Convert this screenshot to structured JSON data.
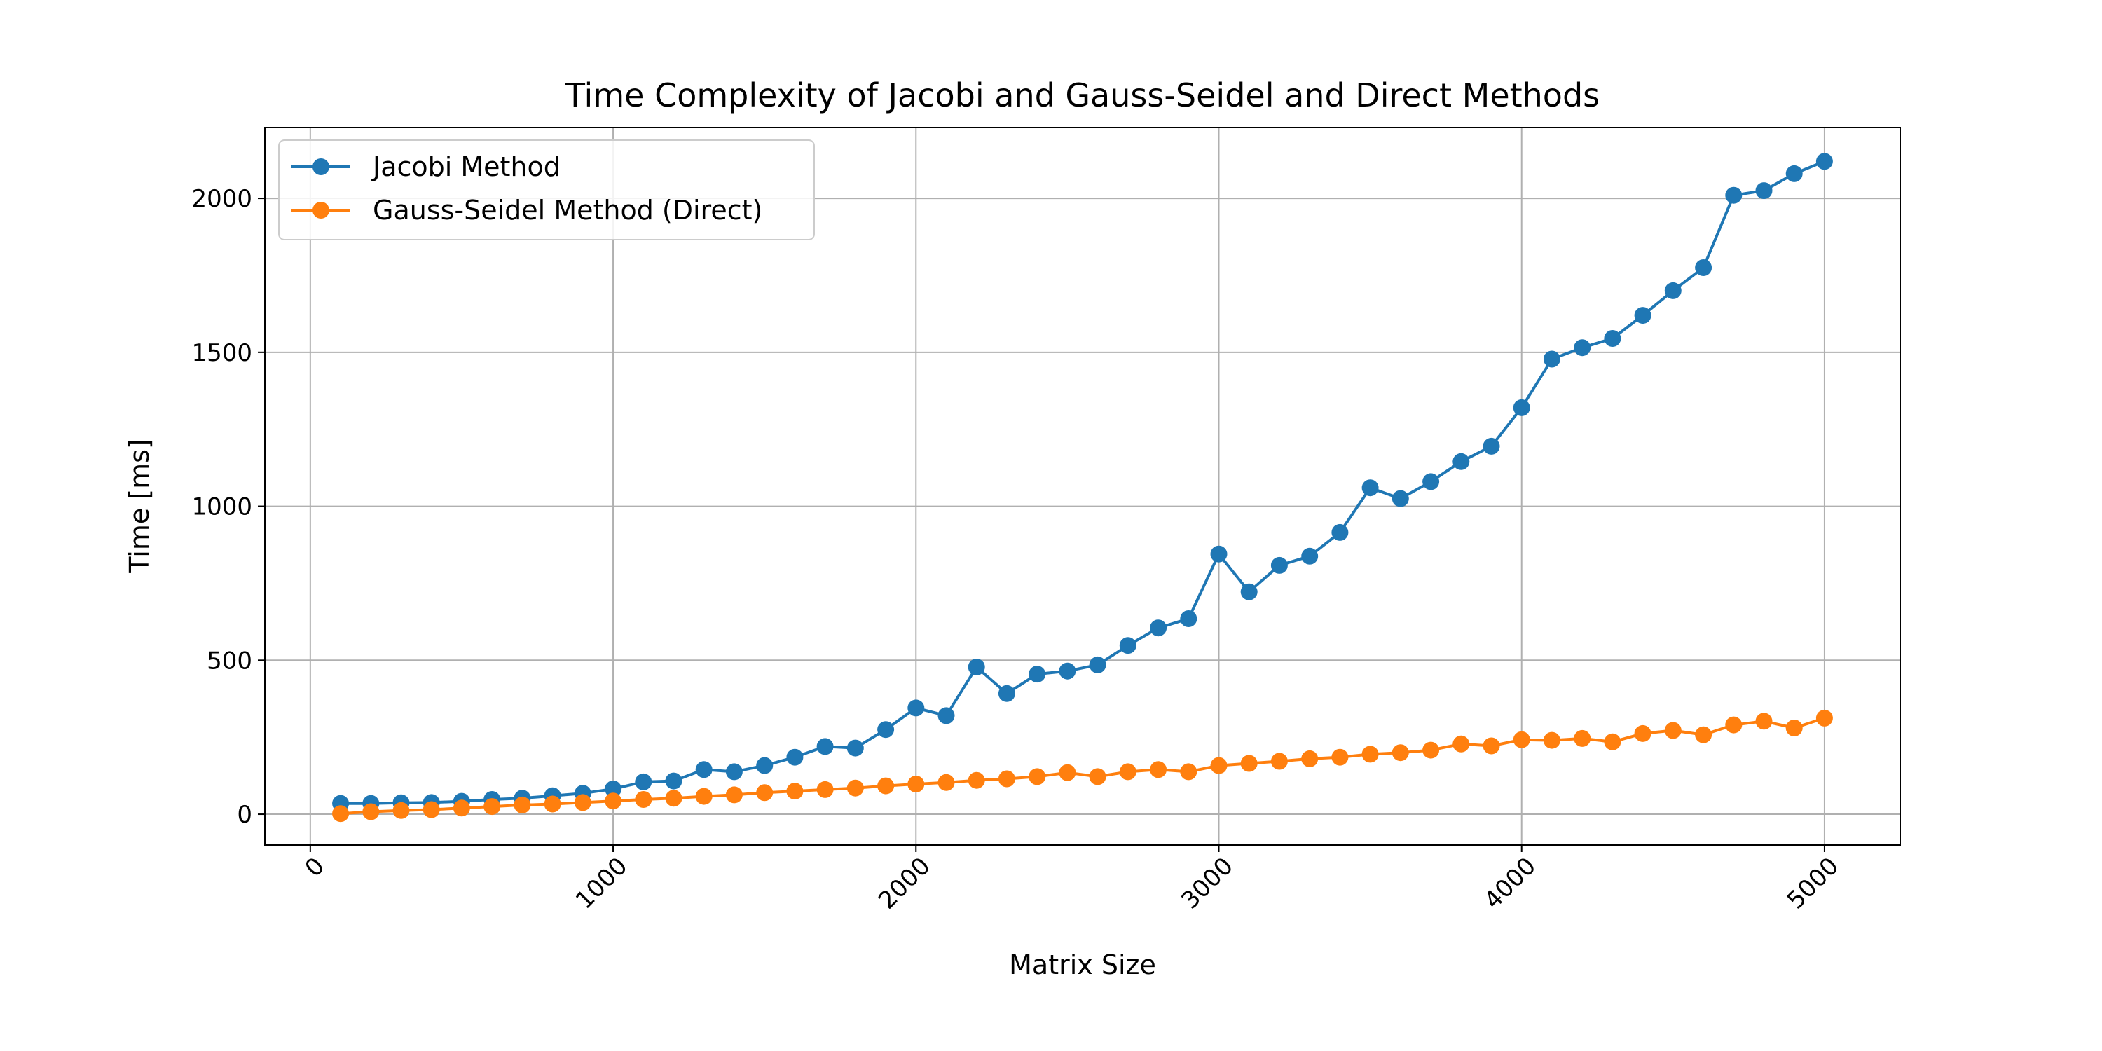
{
  "chart_data": {
    "type": "line",
    "title": "Time Complexity of Jacobi and Gauss-Seidel and Direct Methods",
    "xlabel": "Matrix Size",
    "ylabel": "Time [ms]",
    "xlim": [
      -150,
      5250
    ],
    "ylim": [
      -100,
      2230
    ],
    "xticks": [
      0,
      1000,
      2000,
      3000,
      4000,
      5000
    ],
    "yticks": [
      0,
      500,
      1000,
      1500,
      2000
    ],
    "grid": true,
    "legend_position": "top-left",
    "x": [
      100,
      200,
      300,
      400,
      500,
      600,
      700,
      800,
      900,
      1000,
      1100,
      1200,
      1300,
      1400,
      1500,
      1600,
      1700,
      1800,
      1900,
      2000,
      2100,
      2200,
      2300,
      2400,
      2500,
      2600,
      2700,
      2800,
      2900,
      3000,
      3100,
      3200,
      3300,
      3400,
      3500,
      3600,
      3700,
      3800,
      3900,
      4000,
      4100,
      4200,
      4300,
      4400,
      4500,
      4600,
      4700,
      4800,
      4900,
      5000
    ],
    "series": [
      {
        "name": "Jacobi Method",
        "color": "#1f77b4",
        "values": [
          35,
          35,
          37,
          38,
          42,
          48,
          52,
          60,
          68,
          82,
          105,
          108,
          145,
          138,
          158,
          185,
          220,
          215,
          275,
          345,
          320,
          478,
          392,
          455,
          465,
          485,
          548,
          605,
          635,
          845,
          722,
          808,
          838,
          915,
          1060,
          1025,
          1080,
          1145,
          1195,
          1320,
          1478,
          1515,
          1545,
          1620,
          1700,
          1775,
          2010,
          2025,
          2080,
          2120
        ]
      },
      {
        "name": "Gauss-Seidel Method (Direct)",
        "color": "#ff7f0e",
        "values": [
          2,
          8,
          12,
          15,
          20,
          25,
          30,
          33,
          38,
          43,
          48,
          52,
          58,
          63,
          70,
          75,
          80,
          85,
          92,
          98,
          103,
          110,
          115,
          122,
          135,
          122,
          138,
          145,
          138,
          158,
          165,
          172,
          180,
          185,
          195,
          200,
          208,
          228,
          222,
          242,
          240,
          246,
          235,
          262,
          272,
          258,
          290,
          302,
          280,
          312
        ]
      }
    ]
  }
}
